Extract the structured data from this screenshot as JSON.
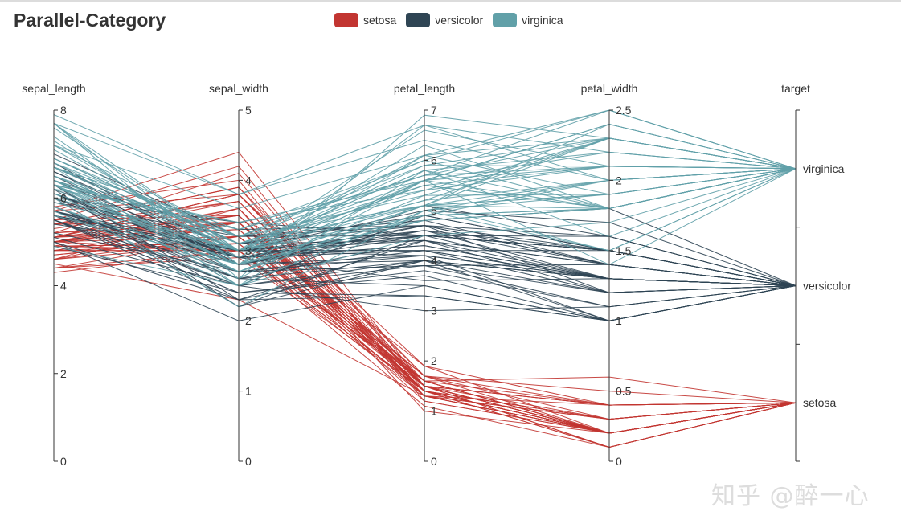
{
  "chart_data": {
    "type": "parallel",
    "title": "Parallel-Category",
    "colors": {
      "setosa": "#c23531",
      "versicolor": "#2f4554",
      "virginica": "#61a0a8"
    },
    "legend": [
      "setosa",
      "versicolor",
      "virginica"
    ],
    "axes": [
      {
        "name": "sepal_length",
        "min": 0,
        "max": 8,
        "ticks": [
          "0",
          "2",
          "4",
          "6",
          "8"
        ],
        "tick_values": [
          0,
          2,
          4,
          6,
          8
        ]
      },
      {
        "name": "sepal_width",
        "min": 0,
        "max": 5,
        "ticks": [
          "0",
          "1",
          "2",
          "3",
          "4",
          "5"
        ],
        "tick_values": [
          0,
          1,
          2,
          3,
          4,
          5
        ]
      },
      {
        "name": "petal_length",
        "min": 0,
        "max": 7,
        "ticks": [
          "0",
          "1",
          "2",
          "3",
          "4",
          "5",
          "6",
          "7"
        ],
        "tick_values": [
          0,
          1,
          2,
          3,
          4,
          5,
          6,
          7
        ]
      },
      {
        "name": "petal_width",
        "min": 0,
        "max": 2.5,
        "ticks": [
          "0",
          "0.5",
          "1",
          "1.5",
          "2",
          "2.5"
        ],
        "tick_values": [
          0,
          0.5,
          1,
          1.5,
          2,
          2.5
        ]
      },
      {
        "name": "target",
        "type": "category",
        "categories": [
          "setosa",
          "versicolor",
          "virginica"
        ]
      }
    ],
    "series": [
      {
        "name": "setosa",
        "rows": [
          [
            5.1,
            3.5,
            1.4,
            0.2
          ],
          [
            4.9,
            3.0,
            1.4,
            0.2
          ],
          [
            4.7,
            3.2,
            1.3,
            0.2
          ],
          [
            4.6,
            3.1,
            1.5,
            0.2
          ],
          [
            5.0,
            3.6,
            1.4,
            0.2
          ],
          [
            5.4,
            3.9,
            1.7,
            0.4
          ],
          [
            4.6,
            3.4,
            1.4,
            0.3
          ],
          [
            5.0,
            3.4,
            1.5,
            0.2
          ],
          [
            4.4,
            2.9,
            1.4,
            0.2
          ],
          [
            4.9,
            3.1,
            1.5,
            0.1
          ],
          [
            5.4,
            3.7,
            1.5,
            0.2
          ],
          [
            4.8,
            3.4,
            1.6,
            0.2
          ],
          [
            4.8,
            3.0,
            1.4,
            0.1
          ],
          [
            4.3,
            3.0,
            1.1,
            0.1
          ],
          [
            5.8,
            4.0,
            1.2,
            0.2
          ],
          [
            5.7,
            4.4,
            1.5,
            0.4
          ],
          [
            5.4,
            3.9,
            1.3,
            0.4
          ],
          [
            5.1,
            3.5,
            1.4,
            0.3
          ],
          [
            5.7,
            3.8,
            1.7,
            0.3
          ],
          [
            5.1,
            3.8,
            1.5,
            0.3
          ],
          [
            5.4,
            3.4,
            1.7,
            0.2
          ],
          [
            5.1,
            3.7,
            1.5,
            0.4
          ],
          [
            4.6,
            3.6,
            1.0,
            0.2
          ],
          [
            5.1,
            3.3,
            1.7,
            0.5
          ],
          [
            4.8,
            3.4,
            1.9,
            0.2
          ],
          [
            5.0,
            3.0,
            1.6,
            0.2
          ],
          [
            5.0,
            3.4,
            1.6,
            0.4
          ],
          [
            5.2,
            3.5,
            1.5,
            0.2
          ],
          [
            5.2,
            3.4,
            1.4,
            0.2
          ],
          [
            4.7,
            3.2,
            1.6,
            0.2
          ],
          [
            4.8,
            3.1,
            1.6,
            0.2
          ],
          [
            5.4,
            3.4,
            1.5,
            0.4
          ],
          [
            5.2,
            4.1,
            1.5,
            0.1
          ],
          [
            5.5,
            4.2,
            1.4,
            0.2
          ],
          [
            4.9,
            3.1,
            1.5,
            0.2
          ],
          [
            5.0,
            3.2,
            1.2,
            0.2
          ],
          [
            5.5,
            3.5,
            1.3,
            0.2
          ],
          [
            4.9,
            3.6,
            1.4,
            0.1
          ],
          [
            4.4,
            3.0,
            1.3,
            0.2
          ],
          [
            5.1,
            3.4,
            1.5,
            0.2
          ],
          [
            5.0,
            3.5,
            1.3,
            0.3
          ],
          [
            4.5,
            2.3,
            1.3,
            0.3
          ],
          [
            4.4,
            3.2,
            1.3,
            0.2
          ],
          [
            5.0,
            3.5,
            1.6,
            0.6
          ],
          [
            5.1,
            3.8,
            1.9,
            0.4
          ],
          [
            4.8,
            3.0,
            1.4,
            0.3
          ],
          [
            5.1,
            3.8,
            1.6,
            0.2
          ],
          [
            4.6,
            3.2,
            1.4,
            0.2
          ],
          [
            5.3,
            3.7,
            1.5,
            0.2
          ],
          [
            5.0,
            3.3,
            1.4,
            0.2
          ]
        ]
      },
      {
        "name": "versicolor",
        "rows": [
          [
            7.0,
            3.2,
            4.7,
            1.4
          ],
          [
            6.4,
            3.2,
            4.5,
            1.5
          ],
          [
            6.9,
            3.1,
            4.9,
            1.5
          ],
          [
            5.5,
            2.3,
            4.0,
            1.3
          ],
          [
            6.5,
            2.8,
            4.6,
            1.5
          ],
          [
            5.7,
            2.8,
            4.5,
            1.3
          ],
          [
            6.3,
            3.3,
            4.7,
            1.6
          ],
          [
            4.9,
            2.4,
            3.3,
            1.0
          ],
          [
            6.6,
            2.9,
            4.6,
            1.3
          ],
          [
            5.2,
            2.7,
            3.9,
            1.4
          ],
          [
            5.0,
            2.0,
            3.5,
            1.0
          ],
          [
            5.9,
            3.0,
            4.2,
            1.5
          ],
          [
            6.0,
            2.2,
            4.0,
            1.0
          ],
          [
            6.1,
            2.9,
            4.7,
            1.4
          ],
          [
            5.6,
            2.9,
            3.6,
            1.3
          ],
          [
            6.7,
            3.1,
            4.4,
            1.4
          ],
          [
            5.6,
            3.0,
            4.5,
            1.5
          ],
          [
            5.8,
            2.7,
            4.1,
            1.0
          ],
          [
            6.2,
            2.2,
            4.5,
            1.5
          ],
          [
            5.6,
            2.5,
            3.9,
            1.1
          ],
          [
            5.9,
            3.2,
            4.8,
            1.8
          ],
          [
            6.1,
            2.8,
            4.0,
            1.3
          ],
          [
            6.3,
            2.5,
            4.9,
            1.5
          ],
          [
            6.1,
            2.8,
            4.7,
            1.2
          ],
          [
            6.4,
            2.9,
            4.3,
            1.3
          ],
          [
            6.6,
            3.0,
            4.4,
            1.4
          ],
          [
            6.8,
            2.8,
            4.8,
            1.4
          ],
          [
            6.7,
            3.0,
            5.0,
            1.7
          ],
          [
            6.0,
            2.9,
            4.5,
            1.5
          ],
          [
            5.7,
            2.6,
            3.5,
            1.0
          ],
          [
            5.5,
            2.4,
            3.8,
            1.1
          ],
          [
            5.5,
            2.4,
            3.7,
            1.0
          ],
          [
            5.8,
            2.7,
            3.9,
            1.2
          ],
          [
            6.0,
            2.7,
            5.1,
            1.6
          ],
          [
            5.4,
            3.0,
            4.5,
            1.5
          ],
          [
            6.0,
            3.4,
            4.5,
            1.6
          ],
          [
            6.7,
            3.1,
            4.7,
            1.5
          ],
          [
            6.3,
            2.3,
            4.4,
            1.3
          ],
          [
            5.6,
            3.0,
            4.1,
            1.3
          ],
          [
            5.5,
            2.5,
            4.0,
            1.3
          ],
          [
            5.5,
            2.6,
            4.4,
            1.2
          ],
          [
            6.1,
            3.0,
            4.6,
            1.4
          ],
          [
            5.8,
            2.6,
            4.0,
            1.2
          ],
          [
            5.0,
            2.3,
            3.3,
            1.0
          ],
          [
            5.6,
            2.7,
            4.2,
            1.3
          ],
          [
            5.7,
            3.0,
            4.2,
            1.2
          ],
          [
            5.7,
            2.9,
            4.2,
            1.3
          ],
          [
            6.2,
            2.9,
            4.3,
            1.3
          ],
          [
            5.1,
            2.5,
            3.0,
            1.1
          ],
          [
            5.7,
            2.8,
            4.1,
            1.3
          ]
        ]
      },
      {
        "name": "virginica",
        "rows": [
          [
            6.3,
            3.3,
            6.0,
            2.5
          ],
          [
            5.8,
            2.7,
            5.1,
            1.9
          ],
          [
            7.1,
            3.0,
            5.9,
            2.1
          ],
          [
            6.3,
            2.9,
            5.6,
            1.8
          ],
          [
            6.5,
            3.0,
            5.8,
            2.2
          ],
          [
            7.6,
            3.0,
            6.6,
            2.1
          ],
          [
            4.9,
            2.5,
            4.5,
            1.7
          ],
          [
            7.3,
            2.9,
            6.3,
            1.8
          ],
          [
            6.7,
            2.5,
            5.8,
            1.8
          ],
          [
            7.2,
            3.6,
            6.1,
            2.5
          ],
          [
            6.5,
            3.2,
            5.1,
            2.0
          ],
          [
            6.4,
            2.7,
            5.3,
            1.9
          ],
          [
            6.8,
            3.0,
            5.5,
            2.1
          ],
          [
            5.7,
            2.5,
            5.0,
            2.0
          ],
          [
            5.8,
            2.8,
            5.1,
            2.4
          ],
          [
            6.4,
            3.2,
            5.3,
            2.3
          ],
          [
            6.5,
            3.0,
            5.5,
            1.8
          ],
          [
            7.7,
            3.8,
            6.7,
            2.2
          ],
          [
            7.7,
            2.6,
            6.9,
            2.3
          ],
          [
            6.0,
            2.2,
            5.0,
            1.5
          ],
          [
            6.9,
            3.2,
            5.7,
            2.3
          ],
          [
            5.6,
            2.8,
            4.9,
            2.0
          ],
          [
            7.7,
            2.8,
            6.7,
            2.0
          ],
          [
            6.3,
            2.7,
            4.9,
            1.8
          ],
          [
            6.7,
            3.3,
            5.7,
            2.1
          ],
          [
            7.2,
            3.2,
            6.0,
            1.8
          ],
          [
            6.2,
            2.8,
            4.8,
            1.8
          ],
          [
            6.1,
            3.0,
            4.9,
            1.8
          ],
          [
            6.4,
            2.8,
            5.6,
            2.1
          ],
          [
            7.2,
            3.0,
            5.8,
            1.6
          ],
          [
            7.4,
            2.8,
            6.1,
            1.9
          ],
          [
            7.9,
            3.8,
            6.4,
            2.0
          ],
          [
            6.4,
            2.8,
            5.6,
            2.2
          ],
          [
            6.3,
            2.8,
            5.1,
            1.5
          ],
          [
            6.1,
            2.6,
            5.6,
            1.4
          ],
          [
            7.7,
            3.0,
            6.1,
            2.3
          ],
          [
            6.3,
            3.4,
            5.6,
            2.4
          ],
          [
            6.4,
            3.1,
            5.5,
            1.8
          ],
          [
            6.0,
            3.0,
            4.8,
            1.8
          ],
          [
            6.9,
            3.1,
            5.4,
            2.1
          ],
          [
            6.7,
            3.1,
            5.6,
            2.4
          ],
          [
            6.9,
            3.1,
            5.1,
            2.3
          ],
          [
            5.8,
            2.7,
            5.1,
            1.9
          ],
          [
            6.8,
            3.2,
            5.9,
            2.3
          ],
          [
            6.7,
            3.3,
            5.7,
            2.5
          ],
          [
            6.7,
            3.0,
            5.2,
            2.3
          ],
          [
            6.3,
            2.5,
            5.0,
            1.9
          ],
          [
            6.5,
            3.0,
            5.2,
            2.0
          ],
          [
            6.2,
            3.4,
            5.4,
            2.3
          ],
          [
            5.9,
            3.0,
            5.1,
            1.8
          ]
        ]
      }
    ]
  },
  "watermark": "知乎 @醉一心"
}
